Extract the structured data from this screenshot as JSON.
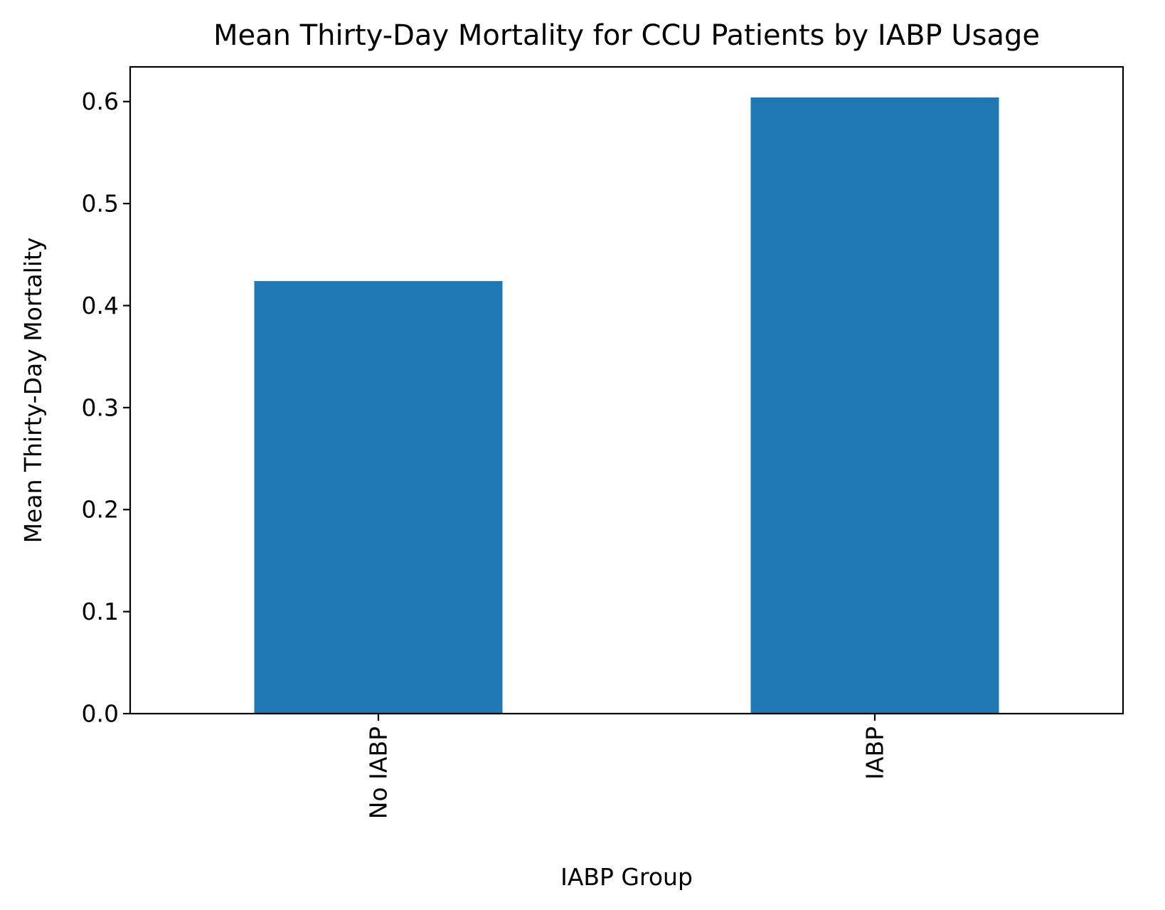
{
  "chart_data": {
    "type": "bar",
    "title": "Mean Thirty-Day Mortality for CCU Patients by IABP Usage",
    "xlabel": "IABP Group",
    "ylabel": "Mean Thirty-Day Mortality",
    "categories": [
      "No IABP",
      "IABP"
    ],
    "values": [
      0.424,
      0.604
    ],
    "ylim": [
      0,
      0.634
    ],
    "yticks": [
      "0.0",
      "0.1",
      "0.2",
      "0.3",
      "0.4",
      "0.5",
      "0.6"
    ],
    "bar_color": "#1f77b4",
    "grid": false,
    "legend": "none",
    "xtick_rotation": "vertical"
  }
}
